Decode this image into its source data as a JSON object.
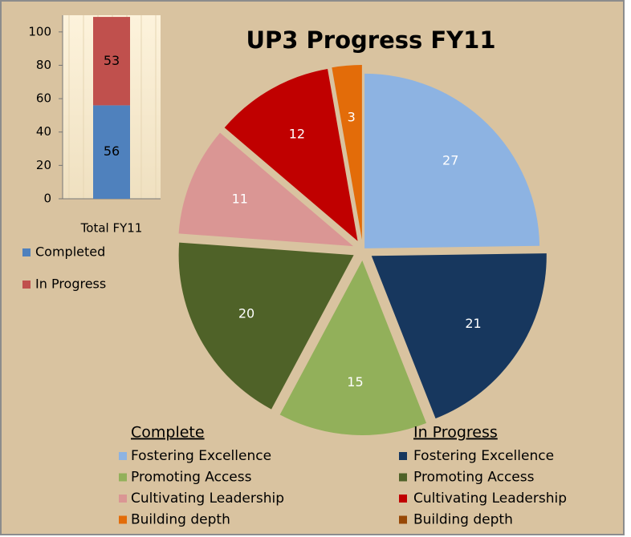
{
  "chart_data": [
    {
      "type": "bar",
      "stacked": true,
      "categories": [
        "Total FY11"
      ],
      "series": [
        {
          "name": "Completed",
          "color": "#4f81bd",
          "values": [
            56
          ]
        },
        {
          "name": "In Progress",
          "color": "#c0504d",
          "values": [
            53
          ]
        }
      ],
      "ylim": [
        0,
        110
      ],
      "yticks": [
        0,
        20,
        40,
        60,
        80,
        100
      ]
    },
    {
      "type": "pie",
      "title": "UP3 Progress FY11",
      "categories": [
        "Fostering Excellence",
        "Promoting Access",
        "Cultivating Leadership",
        "Building depth"
      ],
      "series": [
        {
          "name": "Complete",
          "colors": [
            "#8db3e2",
            "#92b05a",
            "#da9694",
            "#e36c09"
          ],
          "values": [
            27,
            15,
            11,
            3
          ]
        },
        {
          "name": "In Progress",
          "colors": [
            "#17375e",
            "#4f6228",
            "#c00000",
            "#974806"
          ],
          "values": [
            21,
            20,
            12,
            0
          ]
        }
      ]
    }
  ]
}
